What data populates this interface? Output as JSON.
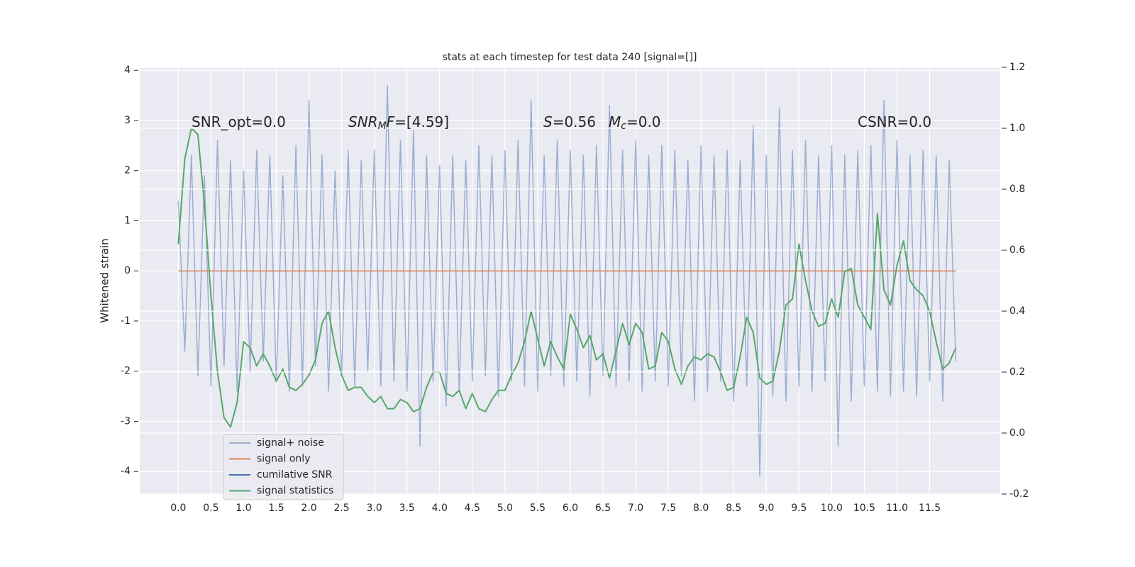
{
  "chart_data": {
    "type": "line",
    "title": "stats at each timestep for test data 240 [signal=[]]",
    "ylabel": "Whitened strain",
    "xlim": [
      -0.59,
      12.58
    ],
    "ylim": [
      -4.45,
      4.06
    ],
    "y2lim": [
      -0.2,
      1.2
    ],
    "xticks": [
      {
        "value": 0,
        "label": "0.0"
      },
      0.5,
      {
        "value": 1,
        "label": "1.0"
      },
      1.5,
      {
        "value": 2,
        "label": "2.0"
      },
      2.5,
      {
        "value": 3,
        "label": "3.0"
      },
      3.5,
      {
        "value": 4,
        "label": "4.0"
      },
      4.5,
      {
        "value": 5,
        "label": "5.0"
      },
      5.5,
      {
        "value": 6,
        "label": "6.0"
      },
      6.5,
      {
        "value": 7,
        "label": "7.0"
      },
      7.5,
      {
        "value": 8,
        "label": "8.0"
      },
      8.5,
      {
        "value": 9,
        "label": "9.0"
      },
      9.5,
      {
        "value": 10,
        "label": "10.0"
      },
      10.5,
      {
        "value": 11,
        "label": "11.0"
      },
      11.5
    ],
    "yticks": [
      -4,
      -3,
      -2,
      -1,
      0,
      1,
      2,
      3,
      4
    ],
    "y2ticks": [
      -0.2,
      {
        "value": 0,
        "label": "0.0"
      },
      0.2,
      0.4,
      0.6,
      0.8,
      {
        "value": 1,
        "label": "1.0"
      },
      1.2
    ],
    "grid": true,
    "legend": "lower left",
    "x": [
      0,
      0.1,
      0.2,
      0.3,
      0.4,
      0.5,
      0.6,
      0.7,
      0.8,
      0.9,
      1,
      1.1,
      1.2,
      1.3,
      1.4,
      1.5,
      1.6,
      1.7,
      1.8,
      1.9,
      2,
      2.1,
      2.2,
      2.3,
      2.4,
      2.5,
      2.6,
      2.7,
      2.8,
      2.9,
      3,
      3.1,
      3.2,
      3.3,
      3.4,
      3.5,
      3.6,
      3.7,
      3.8,
      3.9,
      4,
      4.1,
      4.2,
      4.3,
      4.4,
      4.5,
      4.6,
      4.7,
      4.8,
      4.9,
      5,
      5.1,
      5.2,
      5.3,
      5.4,
      5.5,
      5.6,
      5.7,
      5.8,
      5.9,
      6,
      6.1,
      6.2,
      6.3,
      6.4,
      6.5,
      6.6,
      6.7,
      6.8,
      6.9,
      7,
      7.1,
      7.2,
      7.3,
      7.4,
      7.5,
      7.6,
      7.7,
      7.8,
      7.9,
      8,
      8.1,
      8.2,
      8.3,
      8.4,
      8.5,
      8.6,
      8.7,
      8.8,
      8.9,
      9,
      9.1,
      9.2,
      9.3,
      9.4,
      9.5,
      9.6,
      9.7,
      9.8,
      9.9,
      10,
      10.1,
      10.2,
      10.3,
      10.4,
      10.5,
      10.6,
      10.7,
      10.8,
      10.9,
      11,
      11.1,
      11.2,
      11.3,
      11.4,
      11.5,
      11.6,
      11.7,
      11.8,
      11.9
    ],
    "series": [
      {
        "name": "signal+ noise",
        "color": "#4c72b0",
        "alpha": 0.5,
        "values": [
          1.4,
          -1.6,
          2.3,
          -2.1,
          1.9,
          -2.3,
          2.6,
          -1.9,
          2.2,
          -2.4,
          2.0,
          -2.0,
          2.4,
          -1.8,
          2.3,
          -2.2,
          1.9,
          -2.4,
          2.5,
          -2.3,
          3.4,
          -1.9,
          2.3,
          -2.4,
          2.0,
          -2.1,
          2.4,
          -2.3,
          2.2,
          -2.0,
          2.4,
          -2.3,
          3.7,
          -2.2,
          2.6,
          -2.4,
          2.8,
          -3.5,
          2.3,
          -2.2,
          2.1,
          -2.7,
          2.3,
          -2.4,
          2.2,
          -2.2,
          2.5,
          -2.1,
          2.3,
          -2.5,
          2.4,
          -2.2,
          2.6,
          -2.3,
          3.4,
          -2.4,
          2.3,
          -2.1,
          2.6,
          -2.3,
          2.4,
          -2.2,
          2.3,
          -2.5,
          2.5,
          -2.1,
          3.3,
          -2.3,
          2.4,
          -2.2,
          2.6,
          -2.4,
          2.3,
          -2.2,
          2.5,
          -2.3,
          2.4,
          -2.1,
          2.2,
          -2.6,
          2.5,
          -2.4,
          2.3,
          -2.2,
          2.4,
          -2.6,
          2.2,
          -2.3,
          2.9,
          -4.1,
          2.3,
          -2.5,
          3.25,
          -2.6,
          2.4,
          -2.3,
          2.6,
          -2.4,
          2.3,
          -2.2,
          2.5,
          -3.5,
          2.3,
          -2.6,
          2.4,
          -2.3,
          2.5,
          -2.4,
          3.4,
          -2.5,
          2.6,
          -2.4,
          2.3,
          -2.5,
          2.4,
          -2.2,
          2.3,
          -2.6,
          2.2,
          -1.8
        ]
      },
      {
        "name": "signal only",
        "color": "#dd8452",
        "x": [
          0,
          11.9
        ],
        "values": [
          0,
          0
        ]
      },
      {
        "name": "cumilative SNR",
        "color": "#4c72b0"
      },
      {
        "name": "signal statistics",
        "color": "#55a868",
        "axis": "y2",
        "values": [
          0.62,
          0.9,
          1.0,
          0.98,
          0.75,
          0.45,
          0.2,
          0.05,
          0.02,
          0.1,
          0.3,
          0.28,
          0.22,
          0.26,
          0.22,
          0.17,
          0.21,
          0.15,
          0.14,
          0.16,
          0.19,
          0.24,
          0.36,
          0.4,
          0.28,
          0.19,
          0.14,
          0.15,
          0.15,
          0.12,
          0.1,
          0.12,
          0.08,
          0.08,
          0.11,
          0.1,
          0.07,
          0.08,
          0.15,
          0.2,
          0.2,
          0.13,
          0.12,
          0.14,
          0.08,
          0.13,
          0.08,
          0.07,
          0.11,
          0.14,
          0.14,
          0.19,
          0.23,
          0.3,
          0.4,
          0.31,
          0.22,
          0.3,
          0.25,
          0.21,
          0.39,
          0.34,
          0.28,
          0.32,
          0.24,
          0.26,
          0.18,
          0.27,
          0.36,
          0.29,
          0.36,
          0.33,
          0.21,
          0.22,
          0.33,
          0.3,
          0.21,
          0.16,
          0.22,
          0.25,
          0.24,
          0.26,
          0.25,
          0.2,
          0.14,
          0.15,
          0.25,
          0.38,
          0.33,
          0.18,
          0.16,
          0.17,
          0.27,
          0.42,
          0.44,
          0.62,
          0.5,
          0.4,
          0.35,
          0.36,
          0.44,
          0.38,
          0.53,
          0.54,
          0.42,
          0.38,
          0.34,
          0.72,
          0.47,
          0.42,
          0.55,
          0.63,
          0.5,
          0.47,
          0.45,
          0.4,
          0.3,
          0.21,
          0.23,
          0.28
        ]
      }
    ],
    "annotations": [
      {
        "parts": [
          {
            "text": "SNR_opt=0.0"
          }
        ]
      },
      {
        "parts": [
          {
            "text": "SNR",
            "italic": true
          },
          {
            "text": "M",
            "italic": true,
            "sub": true
          },
          {
            "text": "F",
            "italic": true
          },
          {
            "text": "=[4.59]"
          }
        ]
      },
      {
        "parts": [
          {
            "text": "S",
            "italic": true
          },
          {
            "text": "=0.56"
          }
        ]
      },
      {
        "parts": [
          {
            "text": "M",
            "italic": true
          },
          {
            "text": "c",
            "italic": true,
            "sub": true
          },
          {
            "text": "=0.0"
          }
        ]
      },
      {
        "parts": [
          {
            "text": "CSNR=0.0"
          }
        ]
      }
    ]
  }
}
